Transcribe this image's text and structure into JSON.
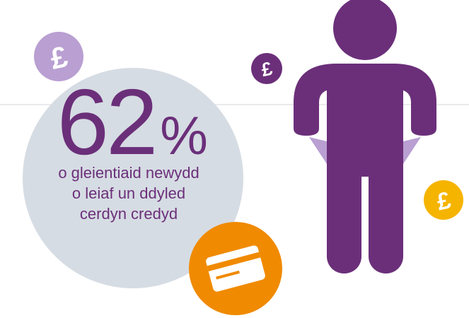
{
  "stat": {
    "number": "62",
    "unit": "%",
    "lines": [
      "o gleientiaid newydd",
      "o leiaf un ddyled",
      "cerdyn credyd"
    ]
  },
  "coins": [
    "£",
    "£",
    "£"
  ]
}
